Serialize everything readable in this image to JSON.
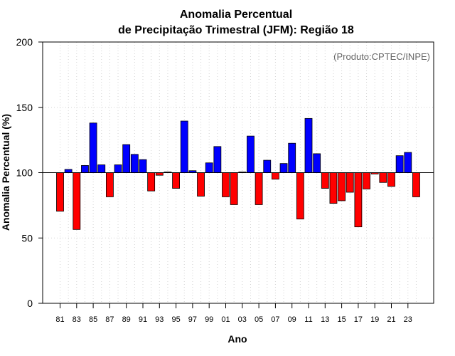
{
  "chart_data": {
    "type": "bar",
    "title": [
      "Anomalia Percentual",
      "de Precipitação Trimestral (JFM): Região 18"
    ],
    "xlabel": "Ano",
    "ylabel": "Anomalia Percentual (%)",
    "credit": "(Produto:CPTEC/INPE)",
    "baseline": 100,
    "ylim": [
      0,
      200
    ],
    "yticks": [
      0,
      50,
      100,
      150,
      200
    ],
    "grid": true,
    "colors": {
      "above": "#0000ff",
      "below": "#ff0000",
      "outline": "#000000",
      "grid": "#d3d3d3"
    },
    "categories": [
      "1981",
      "1982",
      "1983",
      "1984",
      "1985",
      "1986",
      "1987",
      "1988",
      "1989",
      "1990",
      "1991",
      "1992",
      "1993",
      "1994",
      "1995",
      "1996",
      "1997",
      "1998",
      "1999",
      "2000",
      "2001",
      "2002",
      "2003",
      "2004",
      "2005",
      "2006",
      "2007",
      "2008",
      "2009",
      "2010",
      "2011",
      "2012",
      "2013",
      "2014",
      "2015",
      "2016",
      "2017",
      "2018",
      "2019",
      "2020",
      "2021",
      "2022",
      "2023",
      "2024"
    ],
    "tick_labels": [
      "81",
      "83",
      "85",
      "87",
      "89",
      "91",
      "93",
      "95",
      "97",
      "99",
      "01",
      "03",
      "05",
      "07",
      "09",
      "11",
      "13",
      "15",
      "17",
      "19",
      "21",
      "23"
    ],
    "values": [
      70.5,
      102.5,
      56.5,
      105.5,
      138,
      106,
      81.5,
      106,
      121.5,
      114,
      110,
      86,
      98,
      100.5,
      88,
      139.5,
      101.5,
      82,
      107.5,
      120,
      81.5,
      75.5,
      100.5,
      128,
      75.5,
      109.5,
      95,
      107,
      122.5,
      64.5,
      141.5,
      114.5,
      88,
      76.5,
      78.5,
      85,
      58.5,
      87.5,
      99,
      92.5,
      89.5,
      113,
      115.5,
      81.5
    ]
  }
}
